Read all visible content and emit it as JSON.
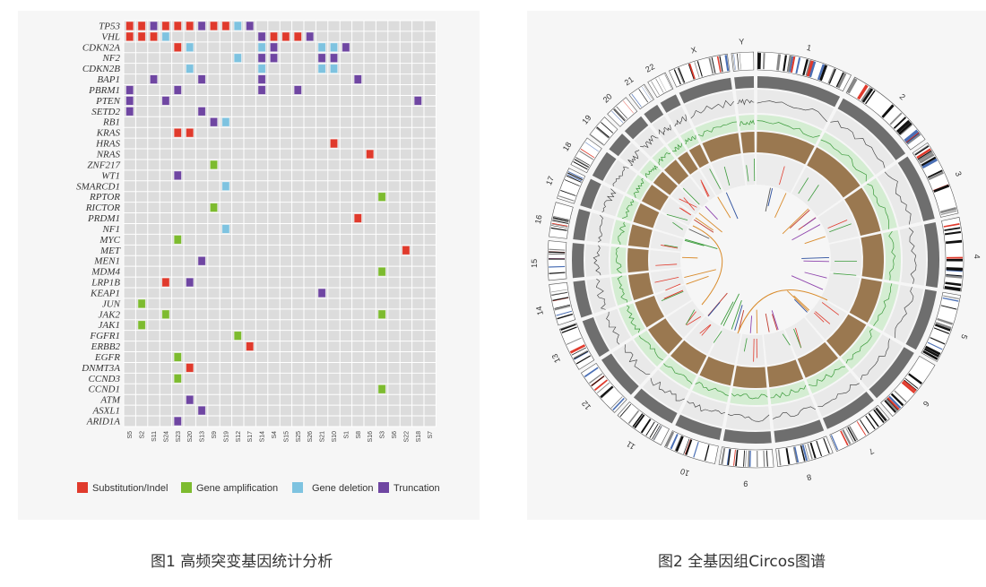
{
  "captions": {
    "figure1": "图1 高频突变基因统计分析",
    "figure2": "图2 全基因组Circos图谱"
  },
  "colors": {
    "substitution": "#e03a2c",
    "amplification": "#7dbb2f",
    "deletion": "#7ec3e0",
    "truncation": "#6f46a2",
    "grid_background": "#dcdcdc"
  },
  "chart_data": [
    {
      "type": "heatmap",
      "title": "",
      "samples": [
        "S5",
        "S2",
        "S11",
        "S24",
        "S23",
        "S20",
        "S13",
        "S9",
        "S19",
        "S12",
        "S17",
        "S14",
        "S4",
        "S15",
        "S25",
        "S26",
        "S21",
        "S10",
        "S1",
        "S8",
        "S16",
        "S3",
        "S6",
        "S22",
        "S18",
        "S7"
      ],
      "legend": [
        {
          "key": "S",
          "label": "Substitution/Indel"
        },
        {
          "key": "A",
          "label": "Gene amplification"
        },
        {
          "key": "D",
          "label": "Gene deletion"
        },
        {
          "key": "T",
          "label": "Truncation"
        }
      ],
      "legend_placement": "bottom",
      "genes": [
        {
          "gene": "TP53",
          "alterations": {
            "S5": "S",
            "S2": "S",
            "S11": "T",
            "S24": "S",
            "S23": "S",
            "S20": "S",
            "S13": "T",
            "S9": "S",
            "S19": "S",
            "S12": "D",
            "S17": "T"
          }
        },
        {
          "gene": "VHL",
          "alterations": {
            "S5": "S",
            "S2": "S",
            "S11": "S",
            "S24": "D",
            "S14": "T",
            "S4": "S",
            "S15": "S",
            "S25": "S",
            "S26": "T"
          }
        },
        {
          "gene": "CDKN2A",
          "alterations": {
            "S23": "S",
            "S20": "D",
            "S14": "D",
            "S4": "T",
            "S21": "D",
            "S10": "D",
            "S1": "T"
          }
        },
        {
          "gene": "NF2",
          "alterations": {
            "S12": "D",
            "S14": "T",
            "S4": "T",
            "S21": "T",
            "S10": "T"
          }
        },
        {
          "gene": "CDKN2B",
          "alterations": {
            "S20": "D",
            "S14": "D",
            "S21": "D",
            "S10": "D"
          }
        },
        {
          "gene": "BAP1",
          "alterations": {
            "S11": "T",
            "S13": "T",
            "S14": "T",
            "S8": "T"
          }
        },
        {
          "gene": "PBRM1",
          "alterations": {
            "S5": "T",
            "S23": "T",
            "S14": "T",
            "S25": "T"
          }
        },
        {
          "gene": "PTEN",
          "alterations": {
            "S5": "T",
            "S24": "T",
            "S18": "T"
          }
        },
        {
          "gene": "SETD2",
          "alterations": {
            "S5": "T",
            "S13": "T"
          }
        },
        {
          "gene": "RB1",
          "alterations": {
            "S9": "T",
            "S19": "D"
          }
        },
        {
          "gene": "KRAS",
          "alterations": {
            "S23": "S",
            "S20": "S"
          }
        },
        {
          "gene": "HRAS",
          "alterations": {
            "S10": "S"
          }
        },
        {
          "gene": "NRAS",
          "alterations": {
            "S16": "S"
          }
        },
        {
          "gene": "ZNF217",
          "alterations": {
            "S9": "A"
          }
        },
        {
          "gene": "WT1",
          "alterations": {
            "S23": "T"
          }
        },
        {
          "gene": "SMARCD1",
          "alterations": {
            "S19": "D"
          }
        },
        {
          "gene": "RPTOR",
          "alterations": {
            "S3": "A"
          }
        },
        {
          "gene": "RICTOR",
          "alterations": {
            "S9": "A"
          }
        },
        {
          "gene": "PRDM1",
          "alterations": {
            "S8": "S"
          }
        },
        {
          "gene": "NF1",
          "alterations": {
            "S19": "D"
          }
        },
        {
          "gene": "MYC",
          "alterations": {
            "S23": "A"
          }
        },
        {
          "gene": "MET",
          "alterations": {
            "S22": "S"
          }
        },
        {
          "gene": "MEN1",
          "alterations": {
            "S13": "T"
          }
        },
        {
          "gene": "MDM4",
          "alterations": {
            "S3": "A"
          }
        },
        {
          "gene": "LRP1B",
          "alterations": {
            "S24": "S",
            "S20": "T"
          }
        },
        {
          "gene": "KEAP1",
          "alterations": {
            "S21": "T"
          }
        },
        {
          "gene": "JUN",
          "alterations": {
            "S2": "A"
          }
        },
        {
          "gene": "JAK2",
          "alterations": {
            "S24": "A",
            "S3": "A"
          }
        },
        {
          "gene": "JAK1",
          "alterations": {
            "S2": "A"
          }
        },
        {
          "gene": "FGFR1",
          "alterations": {
            "S12": "A"
          }
        },
        {
          "gene": "ERBB2",
          "alterations": {
            "S17": "S"
          }
        },
        {
          "gene": "EGFR",
          "alterations": {
            "S23": "A"
          }
        },
        {
          "gene": "DNMT3A",
          "alterations": {
            "S20": "S"
          }
        },
        {
          "gene": "CCND3",
          "alterations": {
            "S23": "A"
          }
        },
        {
          "gene": "CCND1",
          "alterations": {
            "S3": "A"
          }
        },
        {
          "gene": "ATM",
          "alterations": {
            "S20": "T"
          }
        },
        {
          "gene": "ASXL1",
          "alterations": {
            "S13": "T"
          }
        },
        {
          "gene": "ARID1A",
          "alterations": {
            "S23": "T"
          }
        }
      ]
    },
    {
      "type": "circos",
      "title": "",
      "chromosomes": [
        "1",
        "2",
        "3",
        "4",
        "5",
        "6",
        "7",
        "8",
        "9",
        "10",
        "11",
        "12",
        "13",
        "14",
        "15",
        "16",
        "17",
        "18",
        "19",
        "20",
        "21",
        "22",
        "X",
        "Y"
      ]
    }
  ]
}
